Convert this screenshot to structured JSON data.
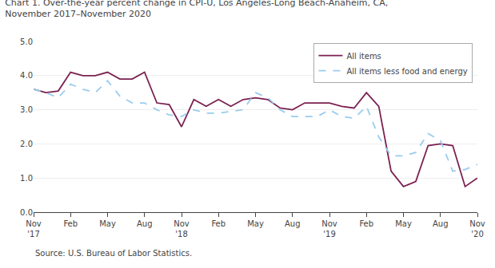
{
  "chart_data": {
    "type": "line",
    "title": "Chart 1. Over-the-year percent change in CPI-U, Los Angeles-Long Beach-Anaheim, CA,\nNovember 2017–November 2020",
    "annotations": [
      "Source: U.S. Bureau of Labor Statistics."
    ],
    "categories": [
      "Nov\n'17",
      null,
      null,
      "Feb",
      null,
      null,
      "May",
      null,
      null,
      "Aug",
      null,
      null,
      "Nov\n'18",
      null,
      null,
      "Feb",
      null,
      null,
      "May",
      null,
      null,
      "Aug",
      null,
      null,
      "Nov\n'19",
      null,
      null,
      "Feb",
      null,
      null,
      "May",
      null,
      null,
      "Aug",
      null,
      null,
      "Nov\n'20"
    ],
    "series": [
      {
        "name": "All items",
        "color": "#7b2150",
        "line_style": "solid",
        "values": [
          3.6,
          3.5,
          3.55,
          4.1,
          4.0,
          4.0,
          4.1,
          3.9,
          3.9,
          4.1,
          3.2,
          3.15,
          2.5,
          3.3,
          3.1,
          3.3,
          3.1,
          3.3,
          3.35,
          3.3,
          3.05,
          3.0,
          3.2,
          3.2,
          3.2,
          3.1,
          3.05,
          3.5,
          3.1,
          1.2,
          0.75,
          0.9,
          1.95,
          2.0,
          1.95,
          0.75,
          1.0
        ]
      },
      {
        "name": "All items less food and energy",
        "color": "#99ccee",
        "line_style": "dashed",
        "values": [
          3.6,
          3.5,
          3.35,
          3.75,
          3.6,
          3.5,
          3.85,
          3.4,
          3.2,
          3.2,
          3.0,
          2.85,
          2.8,
          3.0,
          2.9,
          2.9,
          2.95,
          3.0,
          3.5,
          3.35,
          3.0,
          2.8,
          2.8,
          2.8,
          3.0,
          2.8,
          2.75,
          3.1,
          2.2,
          1.65,
          1.65,
          1.75,
          2.3,
          2.1,
          1.2,
          1.25,
          1.4
        ]
      }
    ],
    "ylim": [
      0.0,
      5.0
    ],
    "yticks": [
      {
        "value": 0.0,
        "label": "0.0"
      },
      {
        "value": 1.0,
        "label": "1.0"
      },
      {
        "value": 2.0,
        "label": "2.0"
      },
      {
        "value": 3.0,
        "label": "3.0"
      },
      {
        "value": 4.0,
        "label": "4.0"
      },
      {
        "value": 5.0,
        "label": "5.0"
      }
    ],
    "grid": true,
    "legend": "upper right"
  }
}
